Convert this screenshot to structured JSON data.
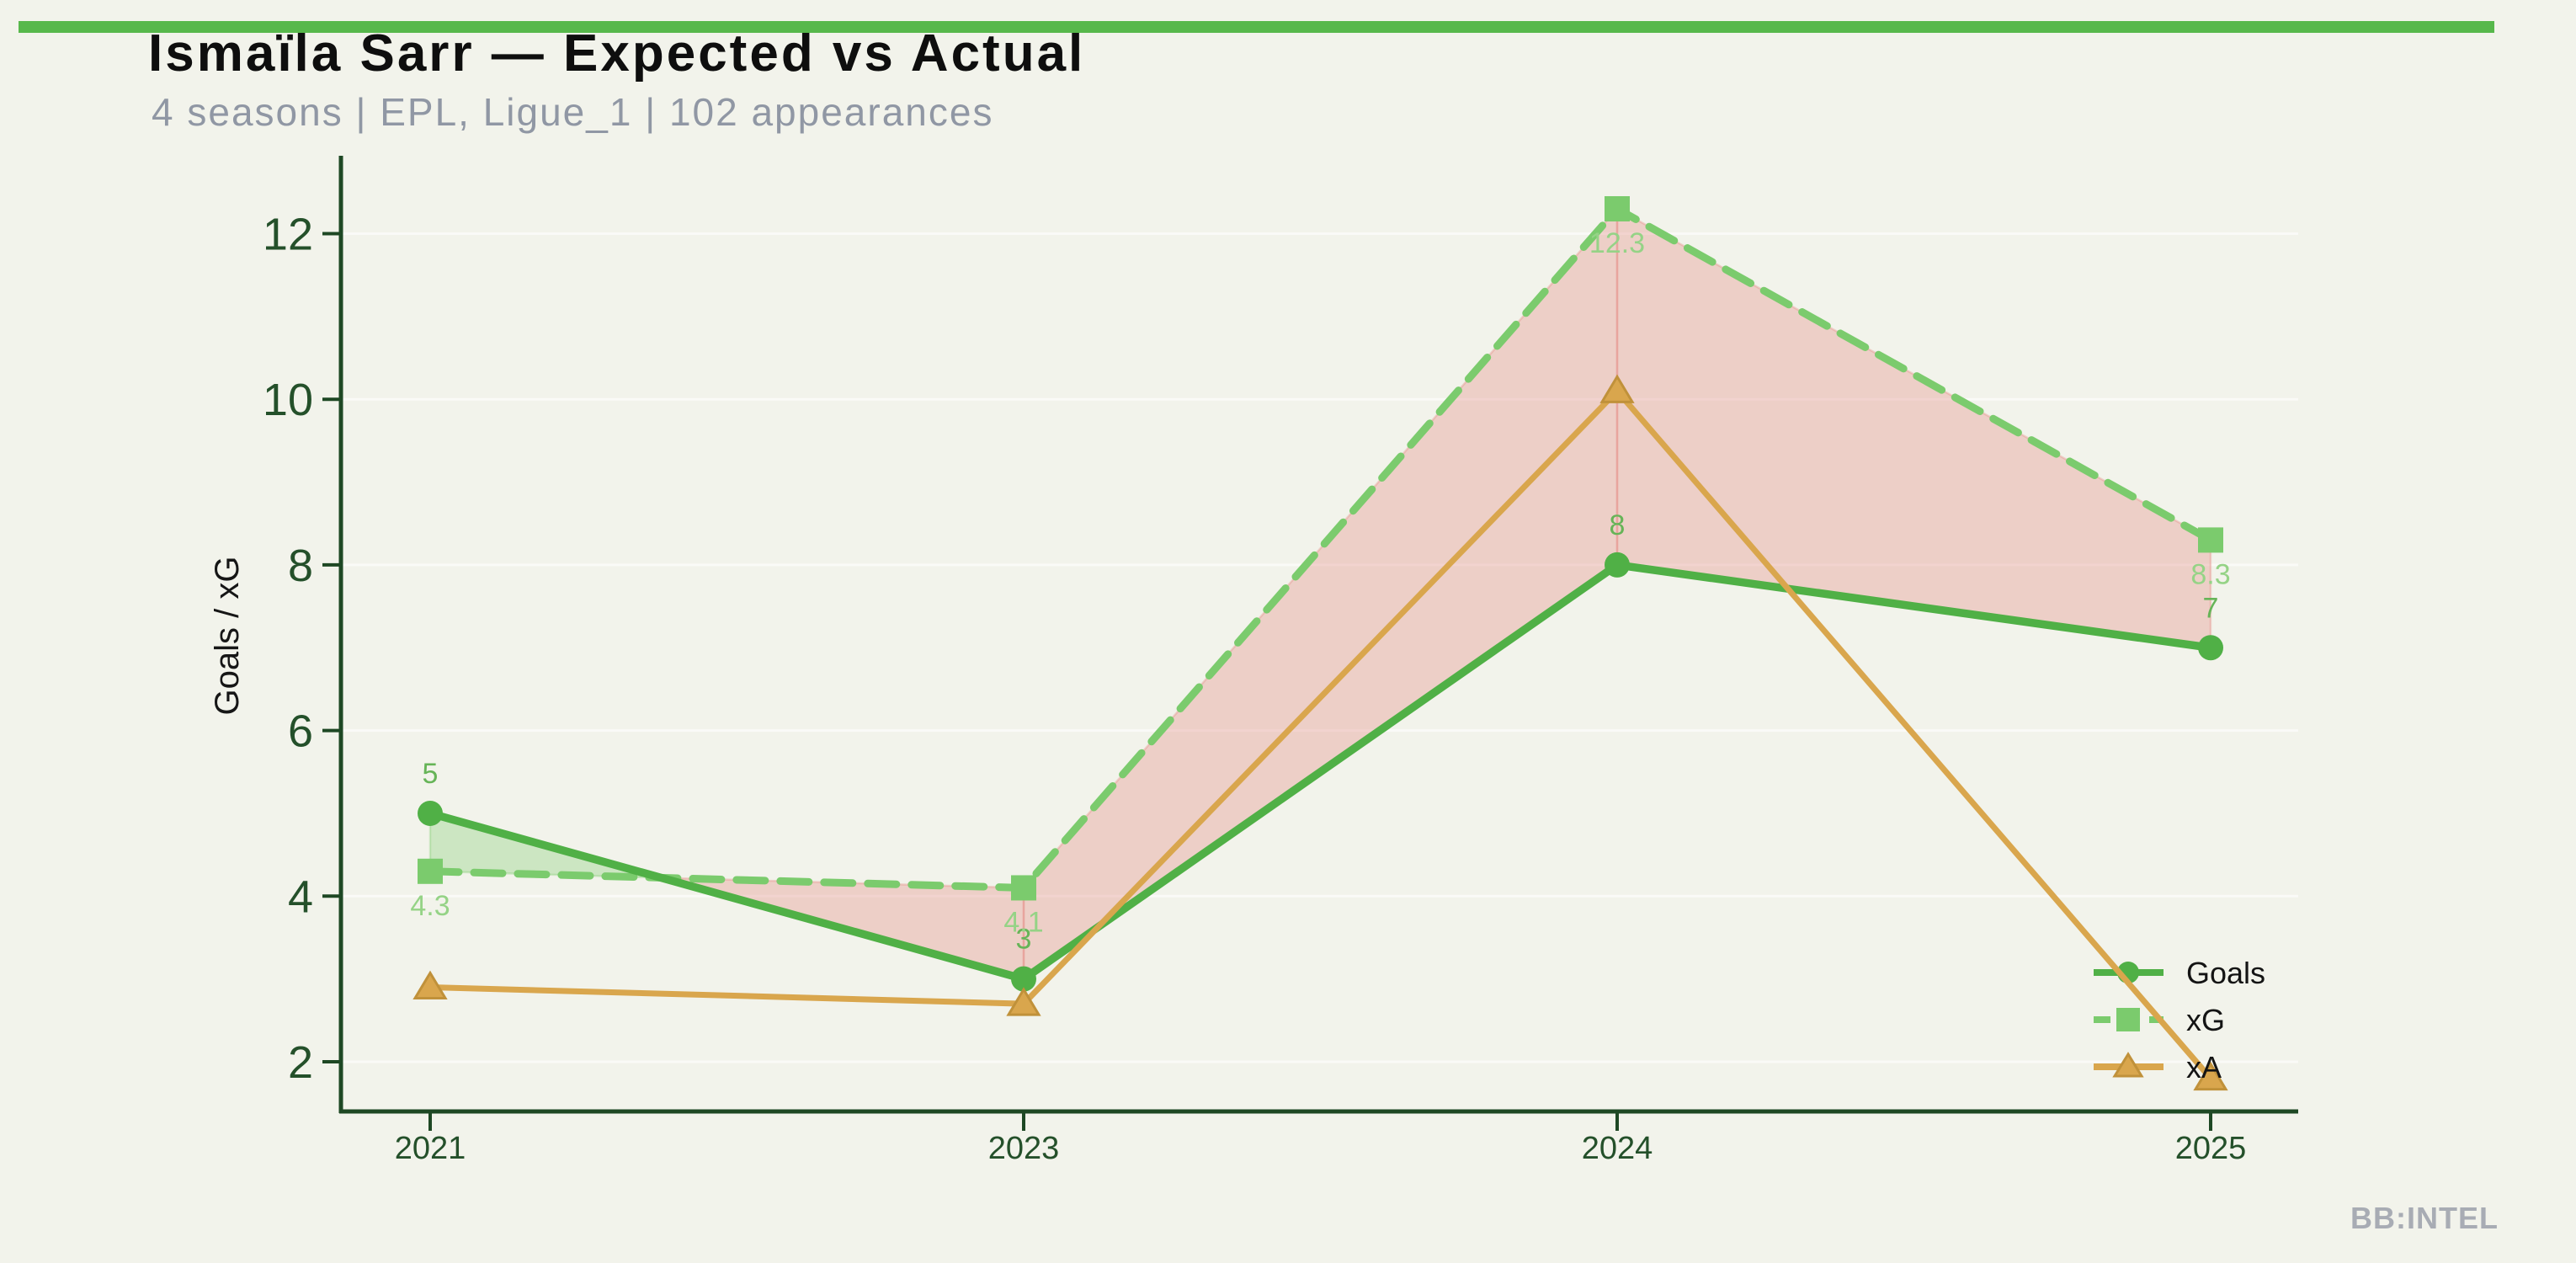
{
  "header": {
    "title": "Ismaïla Sarr — Expected vs Actual",
    "subtitle": "4 seasons | EPL, Ligue_1 | 102 appearances"
  },
  "footer": {
    "watermark": "BB:INTEL"
  },
  "chart_data": {
    "type": "line",
    "title": "Ismaïla Sarr — Expected vs Actual",
    "subtitle": "4 seasons | EPL, Ligue_1 | 102 appearances",
    "categories": [
      "2021",
      "2023",
      "2024",
      "2025"
    ],
    "series": [
      {
        "name": "Goals",
        "values": [
          5,
          3,
          8,
          7
        ],
        "color": "#50b046",
        "marker": "circle",
        "dash": false,
        "point_labels": "above",
        "label_color": "#66b457"
      },
      {
        "name": "xG",
        "values": [
          4.3,
          4.1,
          12.3,
          8.3
        ],
        "color": "#7bcb6d",
        "marker": "square",
        "dash": true,
        "point_labels": "below",
        "label_color": "#95d386"
      },
      {
        "name": "xA",
        "values": [
          2.9,
          2.7,
          10.1,
          1.8
        ],
        "color": "#d9a64d",
        "marker": "triangle",
        "dash": false,
        "point_labels": null,
        "label_color": null
      }
    ],
    "fill_between": {
      "above_color": "rgba(124,203,109,0.32)",
      "below_color": "rgba(228,130,124,0.32)",
      "above_meaning": "Goals > xG",
      "below_meaning": "xG > Goals"
    },
    "ylabel": "Goals / xG",
    "yticks": [
      2,
      4,
      6,
      8,
      10,
      12
    ],
    "ylim": [
      1.3,
      12.9
    ],
    "grid": true,
    "legend_position": "lower right",
    "colors": {
      "axis": "#1e4824",
      "tick_labels": "#24502a",
      "grid": "rgba(255,255,255,0.6)",
      "background": "#f2f3eb",
      "accent_bar": "#57b84b",
      "legend_text": "#141414",
      "triangle_edge": "#c0913a"
    }
  }
}
